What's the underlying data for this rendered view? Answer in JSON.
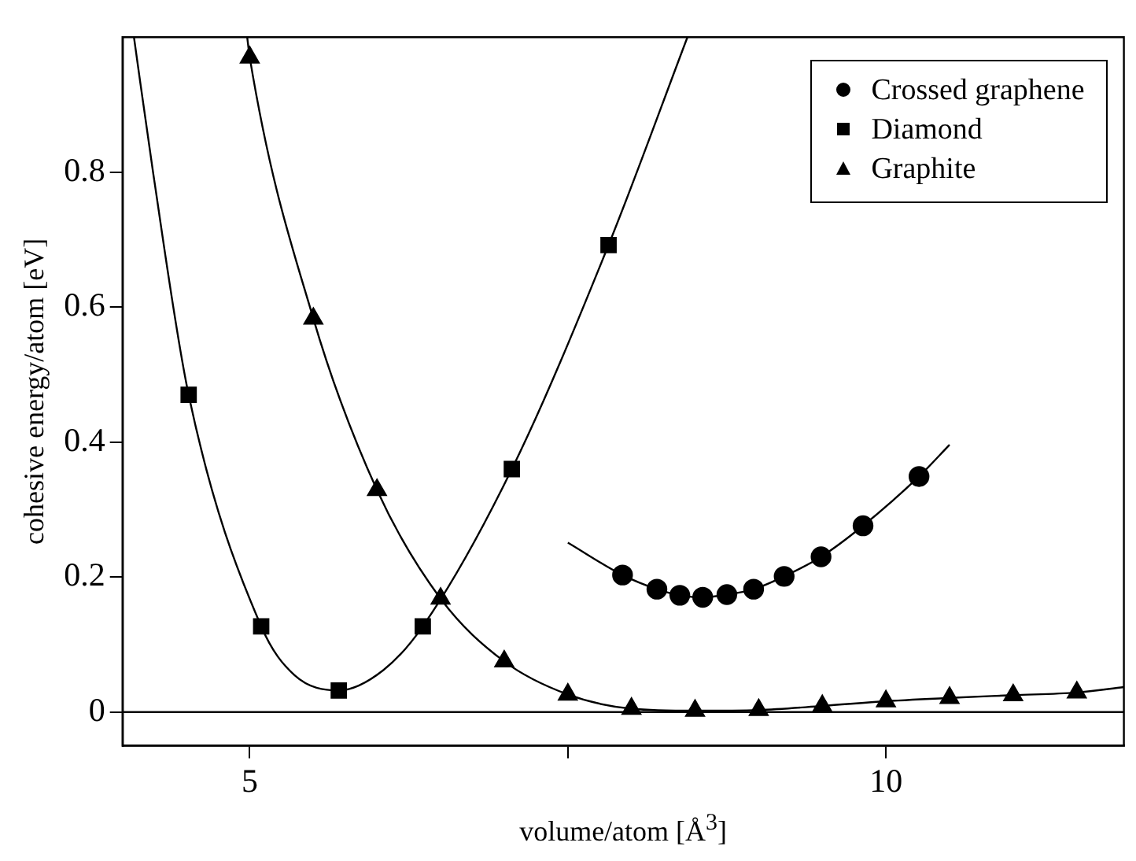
{
  "chart_data": {
    "type": "scatter",
    "xlabel": "volume/atom [Å$^{3}$]",
    "ylabel": "cohesive energy/atom [eV]",
    "xlim": [
      4,
      11.87
    ],
    "ylim": [
      -0.05,
      1.0
    ],
    "xticks": [
      5,
      {
        "value": 7.5,
        "label": null
      },
      10
    ],
    "yticks": [
      0,
      0.2,
      0.4,
      0.6,
      0.8
    ],
    "grid": false,
    "legend": "top right",
    "ref_lines": [
      {
        "axis": "y",
        "value": 0,
        "color": "#000000"
      }
    ],
    "series": [
      {
        "name": "Crossed graphene",
        "type": "scatter",
        "marker": "circle",
        "color": "#000000",
        "x": [
          7.93,
          8.2,
          8.38,
          8.56,
          8.75,
          8.96,
          9.2,
          9.49,
          9.82,
          10.26
        ],
        "values": [
          0.203,
          0.182,
          0.173,
          0.17,
          0.174,
          0.182,
          0.201,
          0.23,
          0.276,
          0.349
        ]
      },
      {
        "name": "Diamond",
        "type": "scatter",
        "marker": "square",
        "color": "#000000",
        "x": [
          4.52,
          5.09,
          5.7,
          6.36,
          7.06,
          7.82
        ],
        "values": [
          0.47,
          0.127,
          0.032,
          0.127,
          0.36,
          0.692
        ]
      },
      {
        "name": "Graphite",
        "type": "scatter",
        "marker": "triangle",
        "color": "#000000",
        "x": [
          5.0,
          5.5,
          6.0,
          6.5,
          7.0,
          7.5,
          8.0,
          8.5,
          9.0,
          9.5,
          10.0,
          10.5,
          11.0,
          11.5
        ],
        "values": [
          0.97,
          0.583,
          0.329,
          0.168,
          0.075,
          0.026,
          0.005,
          0.002,
          0.003,
          0.009,
          0.016,
          0.021,
          0.025,
          0.029
        ]
      },
      {
        "type": "line",
        "marker": "none",
        "color": "#000000",
        "x": [
          7.5,
          7.93,
          8.2,
          8.38,
          8.56,
          8.75,
          8.96,
          9.2,
          9.49,
          9.82,
          10.26,
          10.5
        ],
        "values": [
          0.251,
          0.203,
          0.182,
          0.173,
          0.17,
          0.174,
          0.182,
          0.201,
          0.23,
          0.276,
          0.349,
          0.396
        ]
      },
      {
        "type": "line",
        "marker": "none",
        "color": "#000000",
        "x": [
          4.09,
          4.24,
          4.52,
          5.09,
          5.35,
          5.7,
          6.05,
          6.36,
          7.06,
          7.82,
          8.44
        ],
        "values": [
          1.0,
          0.8,
          0.47,
          0.127,
          0.055,
          0.032,
          0.062,
          0.127,
          0.36,
          0.692,
          1.0
        ]
      },
      {
        "type": "line",
        "marker": "none",
        "color": "#000000",
        "x": [
          4.98,
          5.0,
          5.5,
          6.0,
          6.5,
          7.0,
          7.5,
          8.0,
          8.5,
          9.0,
          9.5,
          10.0,
          10.5,
          11.0,
          11.5,
          11.87
        ],
        "values": [
          1.0,
          0.97,
          0.583,
          0.329,
          0.168,
          0.075,
          0.026,
          0.005,
          0.002,
          0.003,
          0.009,
          0.016,
          0.021,
          0.025,
          0.029,
          0.037
        ]
      }
    ]
  }
}
